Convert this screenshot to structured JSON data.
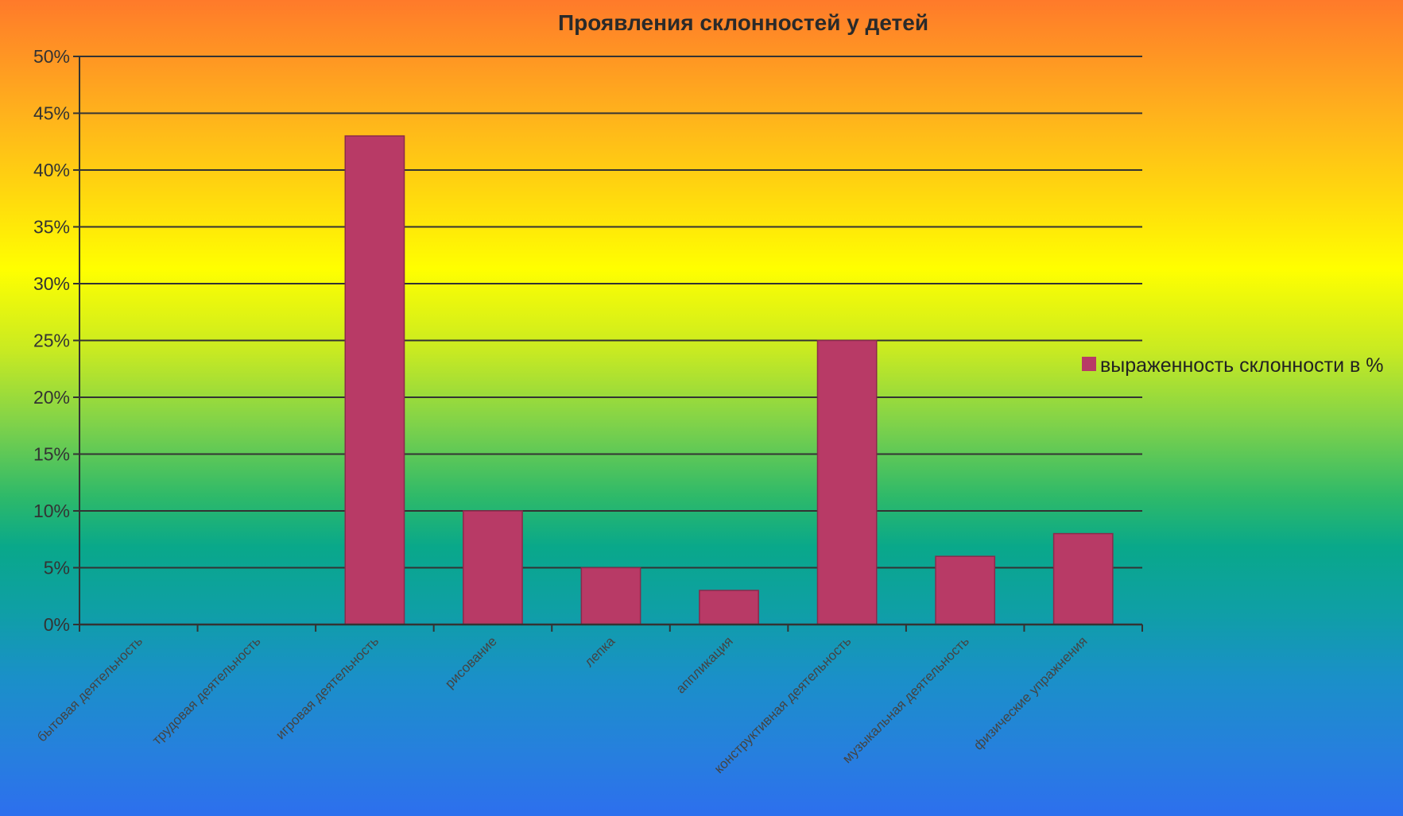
{
  "chart_data": {
    "type": "bar",
    "title": "Проявления склонностей у детей",
    "categories": [
      "бытовая деятельность",
      "трудовая деятельность",
      "игровая деятельность",
      "рисование",
      "лепка",
      "аппликация",
      "конструктивная деятельность",
      "музыкальная деятельность",
      "физические упражнения"
    ],
    "series": [
      {
        "name": "выраженность склонности в %",
        "values": [
          0,
          0,
          43,
          10,
          5,
          3,
          25,
          6,
          8
        ]
      }
    ],
    "ylim": [
      0,
      50
    ],
    "yticks": [
      "0%",
      "5%",
      "10%",
      "15%",
      "20%",
      "25%",
      "30%",
      "35%",
      "40%",
      "45%",
      "50%"
    ],
    "grid": true,
    "legend_position": "right",
    "colors": {
      "bar": "#b83a66",
      "bar_edge": "#8a2a4c",
      "grid": "#333333",
      "axis": "#333333"
    }
  }
}
